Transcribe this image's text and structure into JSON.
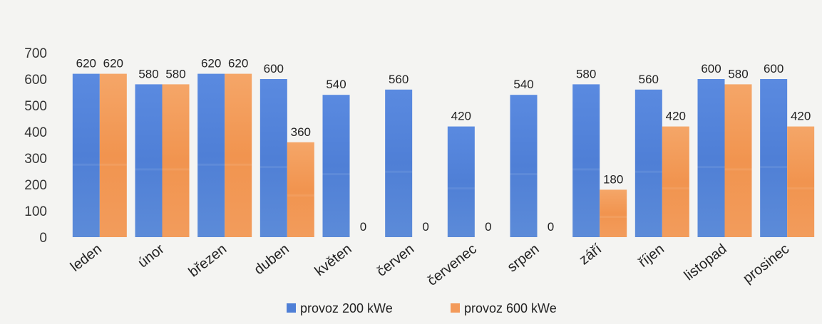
{
  "chart_data": {
    "type": "bar",
    "categories": [
      "leden",
      "únor",
      "březen",
      "duben",
      "květen",
      "červen",
      "červenec",
      "srpen",
      "září",
      "říjen",
      "listopad",
      "prosinec"
    ],
    "series": [
      {
        "name": "provoz 200 kWe",
        "values": [
          620,
          580,
          620,
          600,
          540,
          560,
          420,
          540,
          580,
          560,
          600,
          600
        ],
        "color": "#4f7fd6"
      },
      {
        "name": "provoz 600 kWe",
        "values": [
          620,
          580,
          620,
          360,
          0,
          0,
          0,
          0,
          180,
          420,
          580,
          420
        ],
        "color": "#f39a5a"
      }
    ],
    "ylim": [
      0,
      700
    ],
    "yticks": [
      0,
      100,
      200,
      300,
      400,
      500,
      600,
      700
    ],
    "grid": false,
    "legend_position": "bottom"
  }
}
